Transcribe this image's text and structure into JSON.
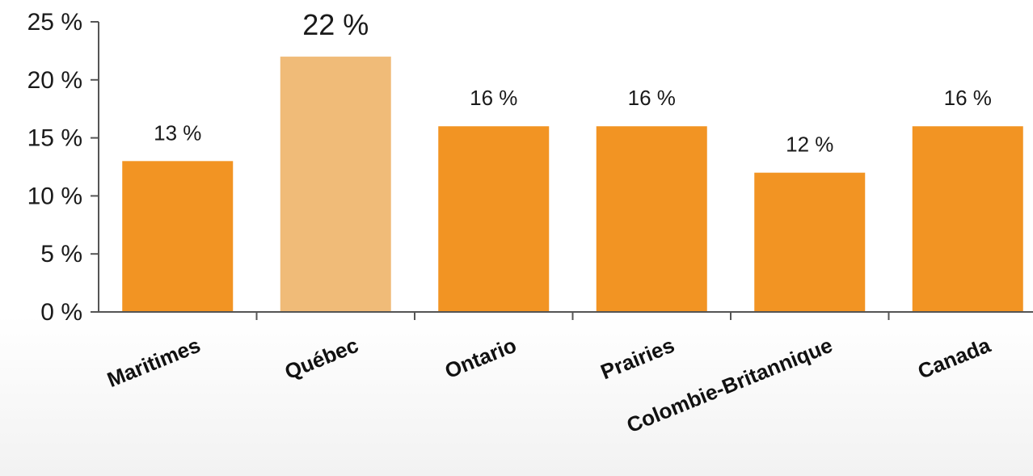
{
  "chart_data": {
    "type": "bar",
    "categories": [
      "Maritimes",
      "Québec",
      "Ontario",
      "Prairies",
      "Colombie-Britannique",
      "Canada"
    ],
    "values": [
      13,
      22,
      16,
      16,
      12,
      16
    ],
    "data_labels": [
      "13 %",
      "22 %",
      "16 %",
      "16 %",
      "12 %",
      "16 %"
    ],
    "highlight_index": 1,
    "y_ticks": [
      "0 %",
      "5 %",
      "10 %",
      "15 %",
      "20 %",
      "25 %"
    ],
    "y_tick_values": [
      0,
      5,
      10,
      15,
      20,
      25
    ],
    "ylim": [
      0,
      25
    ],
    "title": "",
    "xlabel": "",
    "ylabel": "",
    "grid": false,
    "legend": "none",
    "colors": {
      "bar": "#f29423",
      "highlight": "#f0bb78"
    }
  }
}
